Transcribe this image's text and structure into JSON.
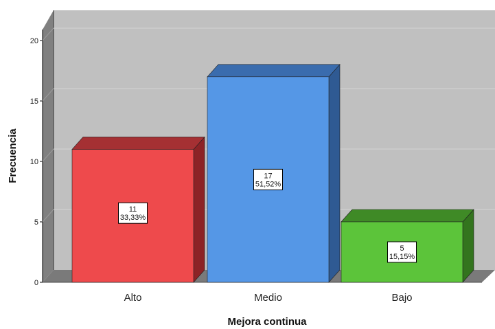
{
  "chart_data": {
    "type": "bar",
    "style": "3d",
    "categories": [
      "Alto",
      "Medio",
      "Bajo"
    ],
    "values": [
      11,
      17,
      5
    ],
    "percent_labels": [
      "33,33%",
      "51,52%",
      "15,15%"
    ],
    "bar_colors": [
      "#ee4a4c",
      "#5597e6",
      "#5cc43a"
    ],
    "bar_top_colors": [
      "#a53033",
      "#3a6cae",
      "#3f8a26"
    ],
    "bar_side_colors": [
      "#8c2326",
      "#2f5a93",
      "#33741e"
    ],
    "xlabel": "Mejora continua",
    "ylabel": "Frecuencia",
    "ylim": [
      0,
      21
    ],
    "yticks": [
      0,
      5,
      10,
      15,
      20
    ],
    "grid": true,
    "colors": {
      "plot_background": "#c0c0c0",
      "left_wall": "#808080",
      "floor": "#7a7a7a",
      "gridline": "#d4d4d4",
      "axis_line": "#000000"
    }
  }
}
